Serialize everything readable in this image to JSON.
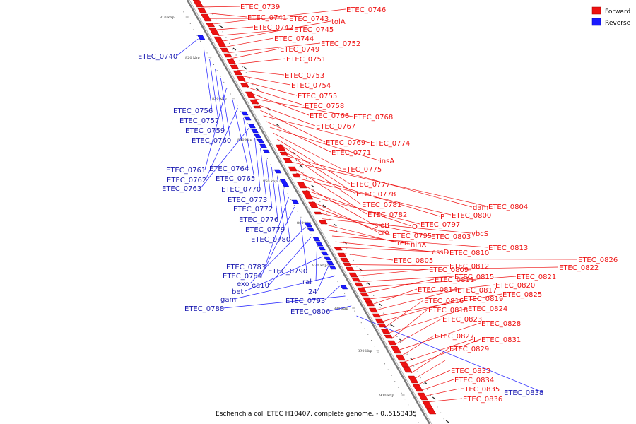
{
  "legend": {
    "items": [
      {
        "label": "Forward",
        "color": "#ee1111"
      },
      {
        "label": "Reverse",
        "color": "#1a1aff"
      }
    ]
  },
  "caption": "Escherichia coli ETEC H10407, complete genome. - 0..5153435",
  "scale": [
    {
      "label": "810 kbp",
      "kbp": 810
    },
    {
      "label": "820 kbp",
      "kbp": 820
    },
    {
      "label": "830 kbp",
      "kbp": 830
    },
    {
      "label": "840 kbp",
      "kbp": 840
    },
    {
      "label": "850 kbp",
      "kbp": 850
    },
    {
      "label": "860 kbp",
      "kbp": 860
    },
    {
      "label": "870 kbp",
      "kbp": 870
    },
    {
      "label": "880 kbp",
      "kbp": 880
    },
    {
      "label": "890 kbp",
      "kbp": 890
    },
    {
      "label": "900 kbp",
      "kbp": 900
    }
  ],
  "forward_labels": [
    "ETEC_0739",
    "ETEC_0741",
    "ETEC_0743",
    "ETEC_0746",
    "ETEC_0742",
    "ETEC_0745",
    "tolA",
    "ETEC_0744",
    "ETEC_0752",
    "ETEC_0749",
    "ETEC_0751",
    "ETEC_0753",
    "ETEC_0754",
    "ETEC_0755",
    "ETEC_0758",
    "ETEC_0766",
    "ETEC_0768",
    "ETEC_0767",
    "ETEC_0769",
    "ETEC_0774",
    "ETEC_0771",
    "insA",
    "ETEC_0775",
    "ETEC_0777",
    "ETEC_0778",
    "ETEC_0781",
    "dam",
    "ETEC_0804",
    "ETEC_0782",
    "P",
    "ETEC_0800",
    "sieB",
    "O",
    "ETEC_0797",
    "cro",
    "ETEC_0795",
    "ETEC_0803",
    "ybcS",
    "ren",
    "ninX",
    "ETEC_0813",
    "essD",
    "ETEC_0810",
    "ETEC_0805",
    "ETEC_0826",
    "ETEC_0812",
    "ETEC_0822",
    "ETEC_0809",
    "ETEC_0815",
    "ETEC_0821",
    "ETEC_0811",
    "ETEC_0820",
    "ETEC_0814",
    "ETEC_0817",
    "ETEC_0825",
    "ETEC_0819",
    "ETEC_0816",
    "ETEC_0824",
    "ETEC_0818",
    "ETEC_0823",
    "ETEC_0828",
    "ETEC_0827",
    "L",
    "ETEC_0831",
    "ETEC_0829",
    "I",
    "ETEC_0833",
    "ETEC_0834",
    "ETEC_0835",
    "ETEC_0836"
  ],
  "reverse_labels": [
    "ETEC_0740",
    "ETEC_0756",
    "ETEC_0757",
    "ETEC_0759",
    "ETEC_0760",
    "ETEC_0761",
    "ETEC_0764",
    "ETEC_0762",
    "ETEC_0765",
    "ETEC_0763",
    "ETEC_0770",
    "ETEC_0773",
    "ETEC_0772",
    "ETEC_0776",
    "ETEC_0779",
    "ETEC_0780",
    "ETEC_0783",
    "ETEC_0784",
    "ETEC_0790",
    "exo",
    "ea10",
    "ral",
    "bet",
    "24",
    "gam",
    "ETEC_0793",
    "ETEC_0788",
    "ETEC_0806",
    "ETEC_0838"
  ]
}
